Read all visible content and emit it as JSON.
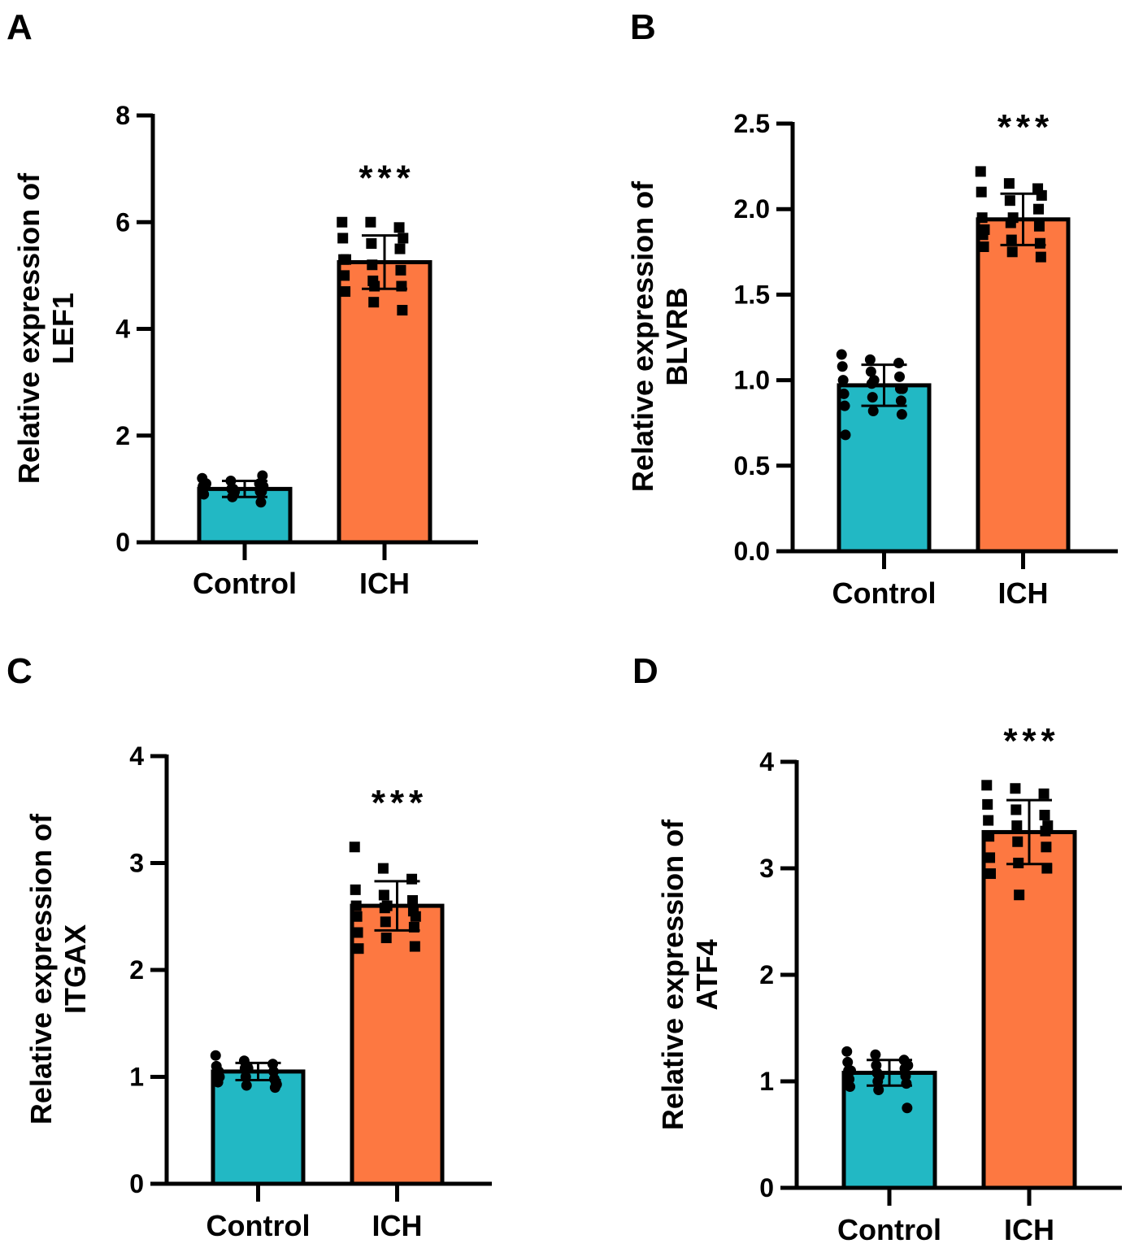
{
  "colors": {
    "control": "#22b8c4",
    "ich": "#fd7841",
    "axis": "#000000"
  },
  "chart_data": [
    {
      "type": "bar",
      "panel": "A",
      "ylabel_line1": "Relative expression of",
      "ylabel_line2": "LEF1",
      "categories": [
        "Control",
        "ICH"
      ],
      "ylim": [
        0,
        8
      ],
      "yticks": [
        "0",
        "2",
        "4",
        "6",
        "8"
      ],
      "ytick_values": [
        0,
        2,
        4,
        6,
        8
      ],
      "series": [
        {
          "name": "Control",
          "mean": 1.0,
          "sd": 0.15,
          "points": [
            1.2,
            1.15,
            1.1,
            1.05,
            1.0,
            0.95,
            0.9,
            0.85,
            0.75,
            1.1,
            1.0,
            0.95,
            1.05,
            0.9,
            1.25,
            1.1,
            0.95,
            1.05
          ]
        },
        {
          "name": "ICH",
          "mean": 5.25,
          "sd": 0.5,
          "points": [
            6.0,
            6.0,
            5.9,
            5.7,
            5.6,
            5.5,
            5.3,
            5.2,
            5.1,
            5.0,
            4.9,
            4.8,
            4.7,
            4.5,
            4.35,
            5.3,
            4.8,
            5.7
          ]
        }
      ],
      "annotation": "***"
    },
    {
      "type": "bar",
      "panel": "B",
      "ylabel_line1": "Relative expression of",
      "ylabel_line2": "BLVRB",
      "categories": [
        "Control",
        "ICH"
      ],
      "ylim": [
        0,
        2.5
      ],
      "yticks": [
        "0.0",
        "0.5",
        "1.0",
        "1.5",
        "2.0",
        "2.5"
      ],
      "ytick_values": [
        0,
        0.5,
        1,
        1.5,
        2,
        2.5
      ],
      "series": [
        {
          "name": "Control",
          "mean": 0.97,
          "sd": 0.12,
          "points": [
            1.15,
            1.12,
            1.1,
            1.08,
            1.05,
            1.02,
            1.0,
            0.98,
            0.95,
            0.92,
            0.9,
            0.88,
            0.85,
            0.82,
            0.8,
            0.68,
            1.0,
            0.95
          ]
        },
        {
          "name": "ICH",
          "mean": 1.94,
          "sd": 0.15,
          "points": [
            2.22,
            2.15,
            2.12,
            2.1,
            2.05,
            2.0,
            1.95,
            1.92,
            1.9,
            1.85,
            1.82,
            1.8,
            1.78,
            1.75,
            1.72,
            1.88,
            1.95,
            2.08
          ]
        }
      ],
      "annotation": "***"
    },
    {
      "type": "bar",
      "panel": "C",
      "ylabel_line1": "Relative expression of",
      "ylabel_line2": "ITGAX",
      "categories": [
        "Control",
        "ICH"
      ],
      "ylim": [
        0,
        4
      ],
      "yticks": [
        "0",
        "1",
        "2",
        "3",
        "4"
      ],
      "ytick_values": [
        0,
        1,
        2,
        3,
        4
      ],
      "series": [
        {
          "name": "Control",
          "mean": 1.05,
          "sd": 0.08,
          "points": [
            1.2,
            1.15,
            1.12,
            1.1,
            1.08,
            1.05,
            1.03,
            1.0,
            0.98,
            0.95,
            0.92,
            0.9,
            1.05,
            1.1,
            0.95,
            1.0,
            1.08,
            0.93
          ]
        },
        {
          "name": "ICH",
          "mean": 2.6,
          "sd": 0.23,
          "points": [
            3.15,
            2.95,
            2.85,
            2.75,
            2.7,
            2.65,
            2.6,
            2.58,
            2.55,
            2.5,
            2.45,
            2.4,
            2.35,
            2.3,
            2.22,
            2.2,
            2.6,
            2.5
          ]
        }
      ],
      "annotation": "***"
    },
    {
      "type": "bar",
      "panel": "D",
      "ylabel_line1": "Relative expression of",
      "ylabel_line2": "ATF4",
      "categories": [
        "Control",
        "ICH"
      ],
      "ylim": [
        0,
        4
      ],
      "yticks": [
        "0",
        "1",
        "2",
        "3",
        "4"
      ],
      "ytick_values": [
        0,
        1,
        2,
        3,
        4
      ],
      "series": [
        {
          "name": "Control",
          "mean": 1.08,
          "sd": 0.12,
          "points": [
            1.28,
            1.25,
            1.2,
            1.18,
            1.15,
            1.12,
            1.1,
            1.08,
            1.05,
            1.02,
            1.0,
            0.98,
            0.95,
            0.92,
            0.75,
            1.1,
            1.05,
            1.15
          ]
        },
        {
          "name": "ICH",
          "mean": 3.34,
          "sd": 0.3,
          "points": [
            3.78,
            3.75,
            3.7,
            3.6,
            3.55,
            3.5,
            3.45,
            3.4,
            3.35,
            3.3,
            3.25,
            3.2,
            3.1,
            3.05,
            3.0,
            2.95,
            2.75,
            3.4
          ]
        }
      ],
      "annotation": "***"
    }
  ]
}
